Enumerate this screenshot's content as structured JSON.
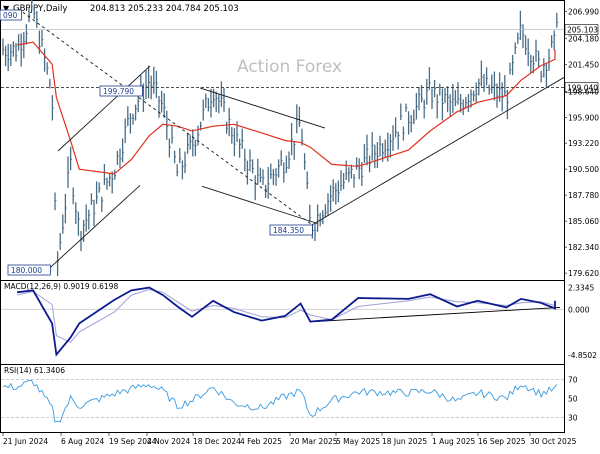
{
  "header": {
    "symbol": "GBPJPY,Daily",
    "ohlc": "204.813 205.233 204.784 205.103"
  },
  "watermark": "Action Forex",
  "chart_data": [
    {
      "type": "line",
      "panel": "price",
      "title": "GBPJPY,Daily",
      "ylim": [
        178.9,
        208.1
      ],
      "y_ticks": [
        "206.990",
        "204.180",
        "201.450",
        "198.640",
        "195.900",
        "193.220",
        "190.500",
        "187.780",
        "185.060",
        "182.340",
        "179.620"
      ],
      "x_ticks": [
        "21 Jun 2024",
        "6 Aug 2024",
        "19 Sep 2024",
        "4 Nov 2024",
        "18 Dec 2024",
        "4 Feb 2025",
        "20 Mar 2025",
        "5 May 2025",
        "18 Jun 2025",
        "1 Aug 2025",
        "16 Sep 2025",
        "30 Oct 2025"
      ],
      "grid": false,
      "series": [
        {
          "x": [
            "21 Jun 2024",
            "10 Jul 2024",
            "1 Aug 2024",
            "6 Aug 2024",
            "19 Aug 2024",
            "29 Aug 2024",
            "19 Sep 2024",
            "10 Oct 2024",
            "1 Nov 2024",
            "4 Nov 2024",
            "19 Nov 2024",
            "3 Dec 2024",
            "18 Dec 2024",
            "10 Jan 2025",
            "4 Feb 2025",
            "25 Feb 2025",
            "10 Mar 2025",
            "20 Mar 2025",
            "10 Apr 2025",
            "5 May 2025",
            "18 Jun 2025",
            "8 Jul 2025",
            "1 Aug 2025",
            "20 Aug 2025",
            "16 Sep 2025",
            "29 Sep 2025",
            "17 Oct 2025",
            "30 Oct 2025",
            "12 Nov 2025"
          ],
          "values": [
            203,
            207.2,
            198.5,
            180.0,
            191.0,
            184.0,
            190.5,
            196.5,
            199.79,
            197.0,
            190.0,
            193.0,
            199.0,
            194.0,
            188.5,
            191.5,
            195.5,
            184.35,
            188.0,
            190.5,
            196.0,
            198.5,
            197.0,
            199.5,
            198.0,
            205.0,
            201.0,
            203.5,
            206.9
          ]
        },
        {
          "values": [
            203.5,
            203.8,
            201.5,
            198.0,
            193.5,
            190.5,
            190.0,
            191.5,
            194.0,
            195.2,
            195.0,
            194.5,
            195.0,
            195.2,
            194.3,
            193.5,
            193.3,
            192.8,
            191.0,
            190.8,
            192.5,
            194.5,
            196.5,
            197.5,
            198.2,
            199.8,
            201.3,
            202.0,
            203.0
          ]
        }
      ],
      "levels": [
        {
          "label": "205.103",
          "value": 205.103
        },
        {
          "label": "199.040",
          "value": 199.04
        }
      ],
      "annotations": [
        "090",
        "199.790",
        "184.350",
        "180.000"
      ]
    },
    {
      "type": "line",
      "panel": "macd",
      "title": "MACD(12,26,9) 0.9019 0.6198",
      "y_ticks": [
        "2.3345",
        "0.000",
        "-4.8502"
      ],
      "ylim": [
        -5.8,
        3.0
      ],
      "series": [
        {
          "values": [
            1.8,
            2.0,
            -1.5,
            -4.8,
            -3.0,
            -1.5,
            1.0,
            2.0,
            2.3,
            1.5,
            0.3,
            -0.8,
            0.9,
            -0.3,
            -1.2,
            -0.7,
            0.6,
            -1.3,
            -1.1,
            1.2,
            1.1,
            1.6,
            0.3,
            0.9,
            0.2,
            1.1,
            0.7,
            0.1,
            0.9
          ]
        },
        {
          "values": [
            1.5,
            1.9,
            0.5,
            -2.8,
            -3.5,
            -2.4,
            -0.3,
            1.5,
            2.1,
            1.8,
            0.8,
            -0.2,
            0.4,
            0.1,
            -0.8,
            -0.9,
            -0.1,
            -0.6,
            -1.1,
            0.3,
            0.9,
            1.3,
            0.8,
            0.7,
            0.4,
            0.7,
            0.8,
            0.4,
            0.62
          ]
        }
      ]
    },
    {
      "type": "line",
      "panel": "rsi",
      "title": "RSI(14) 61.3406",
      "y_ticks": [
        "70",
        "50",
        "30"
      ],
      "ylim": [
        15,
        85
      ],
      "series": [
        {
          "values": [
            62,
            68,
            40,
            22,
            50,
            42,
            55,
            60,
            65,
            58,
            42,
            48,
            62,
            45,
            40,
            52,
            58,
            32,
            48,
            57,
            56,
            58,
            47,
            56,
            50,
            66,
            55,
            60,
            61.34
          ]
        }
      ]
    }
  ]
}
